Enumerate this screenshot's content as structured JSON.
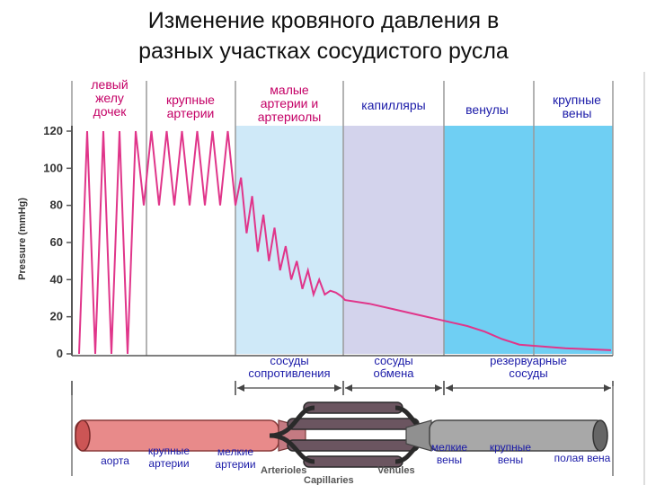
{
  "title_line1": "Изменение кровяного давления в",
  "title_line2": "разных участках сосудистого русла",
  "sections": [
    {
      "lines": [
        "левый",
        "желу",
        "дочек"
      ],
      "color": "#c40066"
    },
    {
      "lines": [
        "крупные",
        "артерии"
      ],
      "color": "#c40066"
    },
    {
      "lines": [
        "малые",
        "артерии и",
        "артериолы"
      ],
      "color": "#c40066"
    },
    {
      "lines": [
        "капилляры"
      ],
      "color": "#1a1aa8"
    },
    {
      "lines": [
        "венулы"
      ],
      "color": "#1a1aa8"
    },
    {
      "lines": [
        "крупные",
        "вены"
      ],
      "color": "#1a1aa8"
    }
  ],
  "y_axis": {
    "label": "Pressure (mmHg)",
    "ticks": [
      0,
      20,
      40,
      60,
      80,
      100,
      120
    ],
    "range": [
      0,
      120
    ]
  },
  "groups": [
    {
      "lines": [
        "сосуды",
        "сопротивления"
      ]
    },
    {
      "lines": [
        "сосуды",
        "обмена"
      ]
    },
    {
      "lines": [
        "резервуарные",
        "сосуды"
      ]
    }
  ],
  "vessels": [
    {
      "lines": [
        "аорта"
      ]
    },
    {
      "lines": [
        "крупные",
        "артерии"
      ]
    },
    {
      "lines": [
        "мелкие",
        "артерии"
      ]
    },
    {
      "lines": [
        "мелкие",
        "вены"
      ]
    },
    {
      "lines": [
        "крупные",
        "вены"
      ]
    },
    {
      "lines": [
        "полая вена"
      ]
    }
  ],
  "english_labels": [
    "Arterioles",
    "Venules",
    "Capillaries"
  ],
  "colors": {
    "pressure_line": "#e0358a",
    "zone_small_arteries": "#cfe9f8",
    "zone_capillaries": "#d3d3ec",
    "zone_venules_veins": "#6fcff3",
    "artery_tube": "#e88a8a",
    "vein_tube": "#a8a8a8"
  },
  "chart_data": {
    "type": "line",
    "ylabel": "Pressure (mmHg)",
    "ylim": [
      0,
      120
    ],
    "y_ticks": [
      0,
      20,
      40,
      60,
      80,
      100,
      120
    ],
    "series": [
      {
        "x": [
          0,
          0.5,
          1,
          1.5,
          2,
          2.5,
          3,
          3.5,
          4,
          4.5,
          5,
          5.5,
          6,
          6.5,
          7,
          7.5,
          8,
          8.5,
          9,
          9.5,
          10,
          10.5,
          11,
          11.5,
          12,
          12.5,
          13,
          13.5,
          14,
          14.5,
          15,
          15.5,
          16,
          16.5,
          17,
          17.5,
          18,
          18.5,
          19,
          19.5,
          20,
          21,
          22,
          23,
          24,
          25,
          26,
          27,
          28,
          29,
          30
        ],
        "y": [
          0,
          120,
          0,
          120,
          0,
          120,
          0,
          120,
          80,
          120,
          80,
          120,
          80,
          120,
          80,
          120,
          80,
          120,
          80,
          120,
          80,
          95,
          65,
          85,
          55,
          75,
          50,
          68,
          45,
          58,
          40,
          50,
          35,
          45,
          32,
          40,
          32,
          34,
          33,
          31,
          29,
          27,
          24,
          21,
          18,
          15,
          12,
          8,
          5,
          3,
          2
        ]
      }
    ]
  }
}
